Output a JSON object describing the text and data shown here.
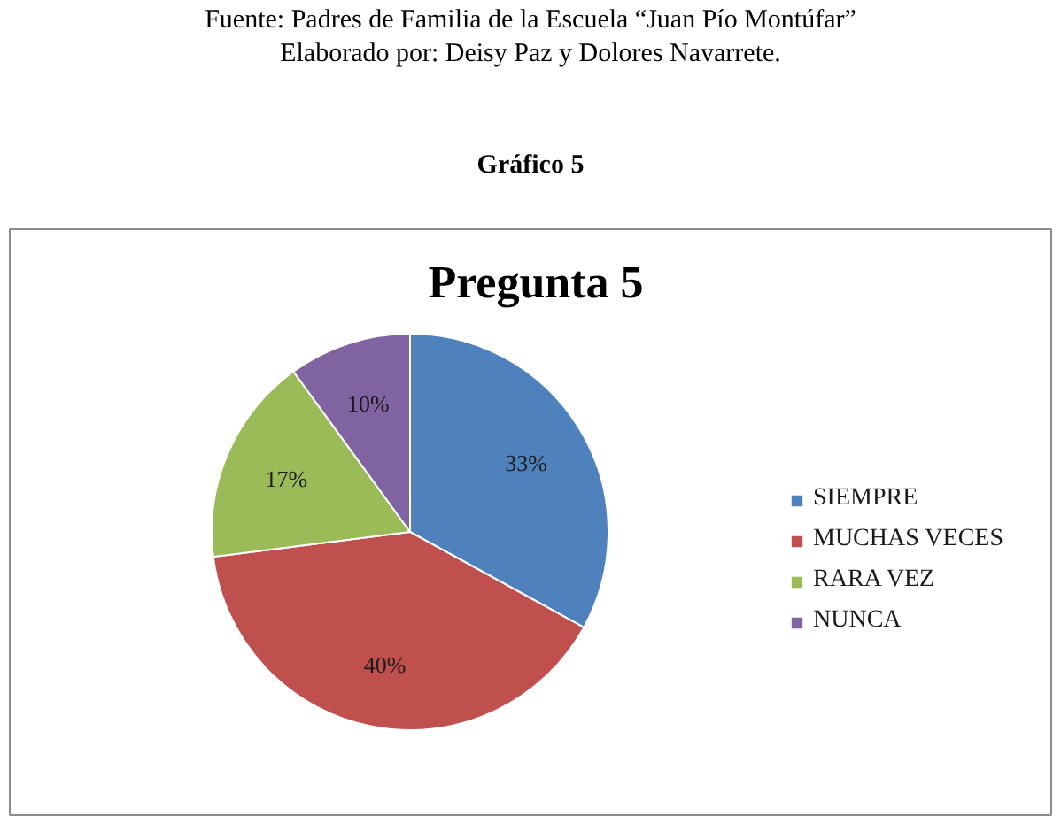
{
  "chart_data": {
    "type": "pie",
    "title": "Pregunta 5",
    "annotations": [
      "Fuente: Padres de Familia de la Escuela “Juan Pío Montúfar”",
      "Elaborado por: Deisy Paz y Dolores Navarrete.",
      "Gráfico 5"
    ],
    "categories": [
      "SIEMPRE",
      "MUCHAS VECES",
      "RARA VEZ",
      "NUNCA"
    ],
    "values": [
      33,
      40,
      17,
      10
    ],
    "colors": [
      "#4f81bd",
      "#c0504d",
      "#9bbb59",
      "#8064a2"
    ],
    "value_labels": [
      "33%",
      "40%",
      "17%",
      "10%"
    ],
    "legend": "right"
  }
}
